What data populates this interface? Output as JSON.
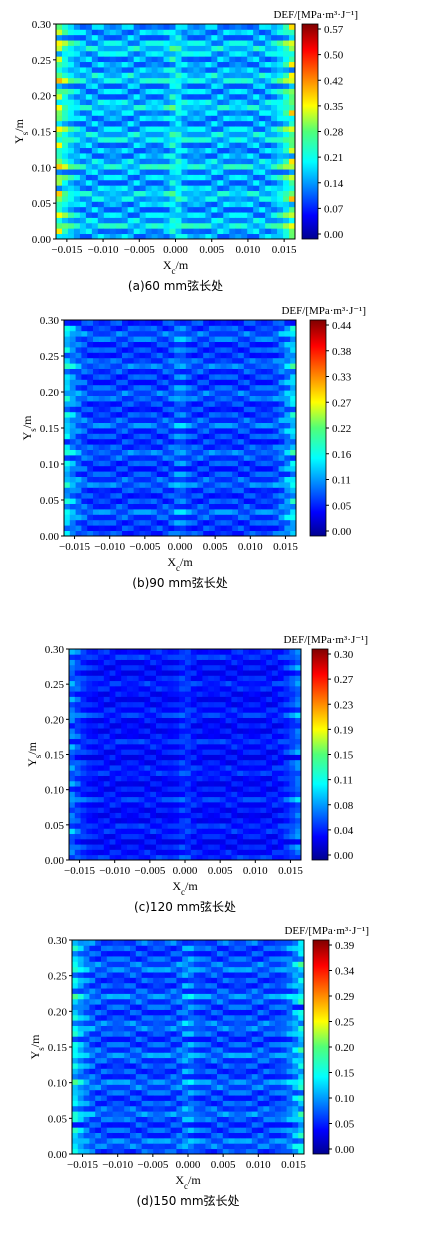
{
  "chart_data": [
    {
      "type": "heatmap",
      "xlabel": "Xc/m",
      "ylabel": "Ys/m",
      "caption": "(a)60 mm弦长处",
      "colorbar_title": "DEF/[MPa·m³·J⁻¹]",
      "colorbar_ticks": [
        "0.57",
        "0.50",
        "0.42",
        "0.35",
        "0.28",
        "0.21",
        "0.14",
        "0.07",
        "0.00"
      ],
      "zlim": [
        0,
        0.57
      ],
      "xlim": [
        -0.0165,
        0.0165
      ],
      "ylim": [
        0,
        0.3
      ],
      "x_ticks": [
        "−0.015",
        "−0.010",
        "−0.005",
        "0.000",
        "0.005",
        "0.010",
        "0.015"
      ],
      "y_ticks": [
        "0.00",
        "0.05",
        "0.10",
        "0.15",
        "0.20",
        "0.25",
        "0.30"
      ],
      "level": 0.72
    },
    {
      "type": "heatmap",
      "xlabel": "Xc/m",
      "ylabel": "Ys/m",
      "caption": "(b)90 mm弦长处",
      "colorbar_title": "DEF/[MPa·m³·J⁻¹]",
      "colorbar_ticks": [
        "0.44",
        "0.38",
        "0.33",
        "0.27",
        "0.22",
        "0.16",
        "0.11",
        "0.05",
        "0.00"
      ],
      "zlim": [
        0,
        0.44
      ],
      "xlim": [
        -0.0165,
        0.0165
      ],
      "ylim": [
        0,
        0.3
      ],
      "x_ticks": [
        "−0.015",
        "−0.010",
        "−0.005",
        "0.000",
        "0.005",
        "0.010",
        "0.015"
      ],
      "y_ticks": [
        "0.00",
        "0.05",
        "0.10",
        "0.15",
        "0.20",
        "0.25",
        "0.30"
      ],
      "level": 0.45
    },
    {
      "type": "heatmap",
      "xlabel": "Xc/m",
      "ylabel": "Ys/m",
      "caption": "(c)120 mm弦长处",
      "colorbar_title": "DEF/[MPa·m³·J⁻¹]",
      "colorbar_ticks": [
        "0.30",
        "0.27",
        "0.23",
        "0.19",
        "0.15",
        "0.11",
        "0.08",
        "0.04",
        "0.00"
      ],
      "zlim": [
        0,
        0.3
      ],
      "xlim": [
        -0.0165,
        0.0165
      ],
      "ylim": [
        0,
        0.3
      ],
      "x_ticks": [
        "−0.015",
        "−0.010",
        "−0.005",
        "0.000",
        "0.005",
        "0.010",
        "0.015"
      ],
      "y_ticks": [
        "0.00",
        "0.05",
        "0.10",
        "0.15",
        "0.20",
        "0.25",
        "0.30"
      ],
      "level": 0.32
    },
    {
      "type": "heatmap",
      "xlabel": "Xc/m",
      "ylabel": "Ys/m",
      "caption": "(d)150 mm弦长处",
      "colorbar_title": "DEF/[MPa·m³·J⁻¹]",
      "colorbar_ticks": [
        "0.39",
        "0.34",
        "0.29",
        "0.25",
        "0.20",
        "0.15",
        "0.10",
        "0.05",
        "0.00"
      ],
      "zlim": [
        0,
        0.39
      ],
      "xlim": [
        -0.0165,
        0.0165
      ],
      "ylim": [
        0,
        0.3
      ],
      "x_ticks": [
        "−0.015",
        "−0.010",
        "−0.005",
        "0.000",
        "0.005",
        "0.010",
        "0.015"
      ],
      "y_ticks": [
        "0.00",
        "0.05",
        "0.10",
        "0.15",
        "0.20",
        "0.25",
        "0.30"
      ],
      "level": 0.48
    }
  ]
}
